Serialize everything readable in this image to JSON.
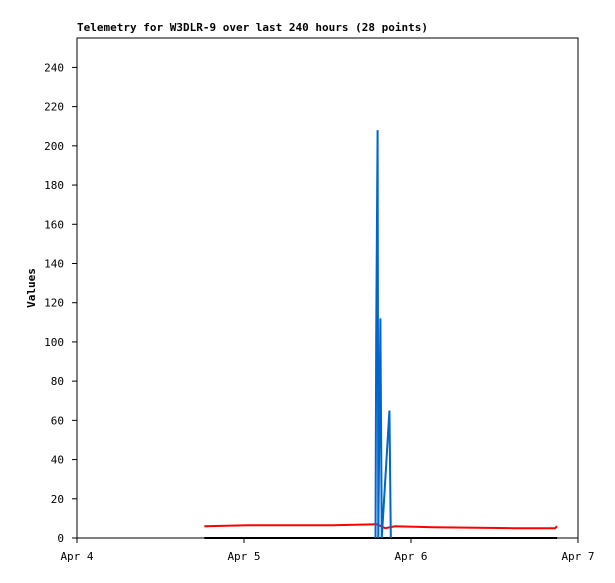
{
  "chart_data": {
    "type": "line",
    "title": "Telemetry for W3DLR-9 over last 240 hours (28 points)",
    "ylabel": "Values",
    "xlim": [
      0,
      72
    ],
    "xticks": [
      {
        "value": 0,
        "label": "Apr 4"
      },
      {
        "value": 24,
        "label": "Apr 5"
      },
      {
        "value": 48,
        "label": "Apr 6"
      },
      {
        "value": 72,
        "label": "Apr 7"
      }
    ],
    "ylim": [
      0,
      255
    ],
    "yticks": [
      0,
      20,
      40,
      60,
      80,
      100,
      120,
      140,
      160,
      180,
      200,
      220,
      240
    ],
    "grid": false,
    "series": [
      {
        "color": "#ff0000",
        "x": [
          18.3,
          24.6,
          36.8,
          43.1,
          44.3,
          45.7,
          51.2,
          62.9,
          68.7,
          69.0
        ],
        "values": [
          6,
          6.5,
          6.5,
          7,
          5,
          6,
          5.5,
          5,
          5,
          6
        ]
      },
      {
        "color": "#000000",
        "x": [
          18.3,
          69.0
        ],
        "values": [
          0,
          0
        ]
      },
      {
        "color": "#0066cc",
        "x": [
          42.9,
          43.0,
          43.2,
          43.3,
          43.6,
          43.7,
          43.8,
          44.9,
          45.0,
          45.1
        ],
        "values": [
          0,
          104,
          208,
          0,
          112,
          56,
          0,
          65,
          32,
          0
        ]
      }
    ]
  }
}
